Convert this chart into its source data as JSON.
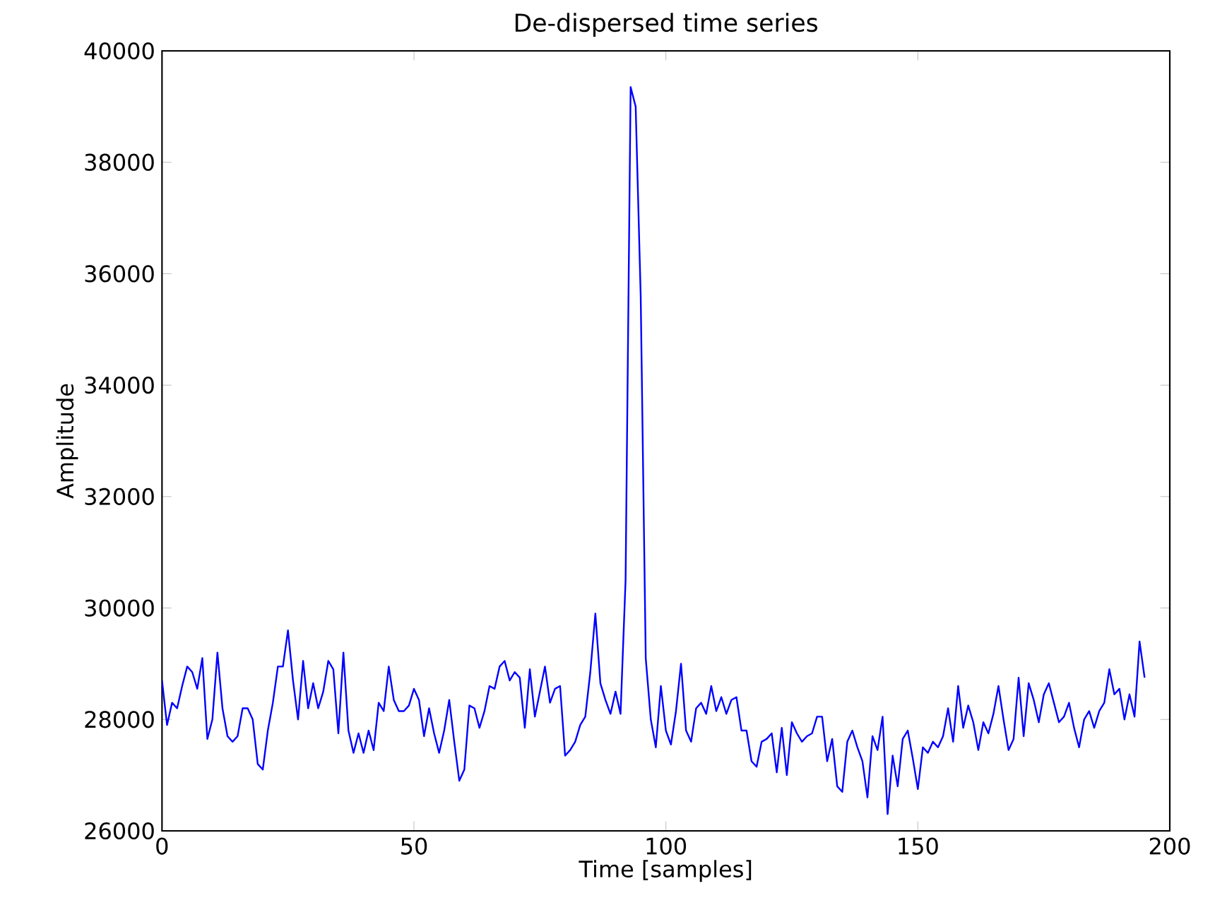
{
  "chart_data": {
    "type": "line",
    "title": "De-dispersed time series",
    "xlabel": "Time [samples]",
    "ylabel": "Amplitude",
    "xlim": [
      0,
      200
    ],
    "ylim": [
      26000,
      40000
    ],
    "xticks": [
      0,
      50,
      100,
      150,
      200
    ],
    "yticks": [
      26000,
      28000,
      30000,
      32000,
      34000,
      36000,
      38000,
      40000
    ],
    "grid": false,
    "marker": "none",
    "line_style": "solid",
    "series": [
      {
        "color": "#0000ff",
        "x": [
          0,
          1,
          2,
          3,
          4,
          5,
          6,
          7,
          8,
          9,
          10,
          11,
          12,
          13,
          14,
          15,
          16,
          17,
          18,
          19,
          20,
          21,
          22,
          23,
          24,
          25,
          26,
          27,
          28,
          29,
          30,
          31,
          32,
          33,
          34,
          35,
          36,
          37,
          38,
          39,
          40,
          41,
          42,
          43,
          44,
          45,
          46,
          47,
          48,
          49,
          50,
          51,
          52,
          53,
          54,
          55,
          56,
          57,
          58,
          59,
          60,
          61,
          62,
          63,
          64,
          65,
          66,
          67,
          68,
          69,
          70,
          71,
          72,
          73,
          74,
          75,
          76,
          77,
          78,
          79,
          80,
          81,
          82,
          83,
          84,
          85,
          86,
          87,
          88,
          89,
          90,
          91,
          92,
          93,
          94,
          95,
          96,
          97,
          98,
          99,
          100,
          101,
          102,
          103,
          104,
          105,
          106,
          107,
          108,
          109,
          110,
          111,
          112,
          113,
          114,
          115,
          116,
          117,
          118,
          119,
          120,
          121,
          122,
          123,
          124,
          125,
          126,
          127,
          128,
          129,
          130,
          131,
          132,
          133,
          134,
          135,
          136,
          137,
          138,
          139,
          140,
          141,
          142,
          143,
          144,
          145,
          146,
          147,
          148,
          149,
          150,
          151,
          152,
          153,
          154,
          155,
          156,
          157,
          158,
          159,
          160,
          161,
          162,
          163,
          164,
          165,
          166,
          167,
          168,
          169,
          170,
          171,
          172,
          173,
          174,
          175,
          176,
          177,
          178,
          179,
          180,
          181,
          182,
          183,
          184,
          185,
          186,
          187,
          188,
          189,
          190,
          191,
          192,
          193,
          194,
          195
        ],
        "values": [
          28700,
          27900,
          28300,
          28200,
          28600,
          28950,
          28850,
          28550,
          29100,
          27650,
          28000,
          29200,
          28200,
          27700,
          27600,
          27700,
          28200,
          28200,
          28000,
          27200,
          27100,
          27800,
          28300,
          28950,
          28950,
          29600,
          28700,
          28000,
          29050,
          28200,
          28650,
          28200,
          28500,
          29050,
          28900,
          27750,
          29200,
          27800,
          27400,
          27750,
          27400,
          27800,
          27450,
          28300,
          28150,
          28950,
          28350,
          28150,
          28150,
          28250,
          28550,
          28350,
          27700,
          28200,
          27750,
          27400,
          27800,
          28350,
          27600,
          26900,
          27100,
          28250,
          28200,
          27850,
          28150,
          28600,
          28550,
          28950,
          29050,
          28700,
          28850,
          28750,
          27850,
          28900,
          28050,
          28500,
          28950,
          28300,
          28550,
          28600,
          27350,
          27450,
          27600,
          27900,
          28050,
          28850,
          29900,
          28650,
          28350,
          28100,
          28500,
          28100,
          30500,
          39350,
          39000,
          35600,
          29100,
          28000,
          27500,
          28600,
          27800,
          27550,
          28150,
          29000,
          27800,
          27600,
          28200,
          28300,
          28100,
          28600,
          28150,
          28400,
          28100,
          28350,
          28400,
          27800,
          27800,
          27250,
          27150,
          27600,
          27650,
          27750,
          27050,
          27850,
          27000,
          27950,
          27750,
          27600,
          27700,
          27750,
          28050,
          28050,
          27250,
          27650,
          26800,
          26700,
          27600,
          27800,
          27500,
          27250,
          26600,
          27700,
          27450,
          28050,
          26300,
          27350,
          26800,
          27650,
          27800,
          27300,
          26750,
          27500,
          27400,
          27600,
          27500,
          27700,
          28200,
          27600,
          28600,
          27850,
          28250,
          27950,
          27450,
          27950,
          27750,
          28100,
          28600,
          28000,
          27450,
          27650,
          28750,
          27700,
          28650,
          28350,
          27950,
          28450,
          28650,
          28300,
          27950,
          28050,
          28300,
          27850,
          27500,
          28000,
          28150,
          27850,
          28150,
          28300,
          28900,
          28450,
          28550,
          28000,
          28450,
          28050,
          29400,
          28750
        ]
      }
    ]
  }
}
